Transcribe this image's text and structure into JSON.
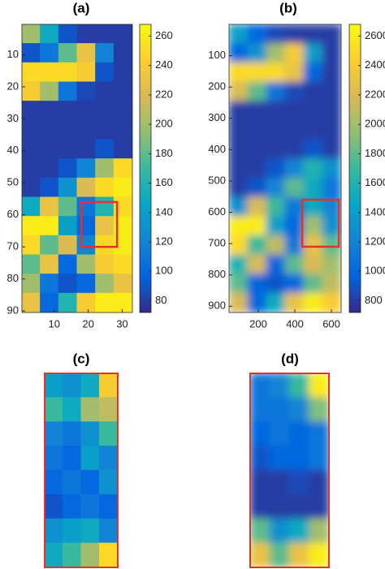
{
  "chart_data": [
    {
      "type": "heatmap",
      "title": "(a)",
      "colormap": "parula",
      "xlim": [
        0.5,
        33
      ],
      "ylim": [
        0.5,
        90.5
      ],
      "xticks": [
        10,
        20,
        30
      ],
      "yticks": [
        10,
        20,
        30,
        40,
        50,
        60,
        70,
        80,
        90
      ],
      "clim": [
        72,
        268
      ],
      "cticks": [
        80,
        100,
        120,
        140,
        160,
        180,
        200,
        220,
        240,
        260
      ],
      "highlight": {
        "x": [
          18,
          28.5
        ],
        "y": [
          56,
          70
        ],
        "color": "#e8302a"
      },
      "z": [
        [
          200,
          150,
          90,
          80,
          80,
          80
        ],
        [
          90,
          110,
          180,
          230,
          120,
          80
        ],
        [
          250,
          250,
          250,
          240,
          90,
          80
        ],
        [
          240,
          200,
          110,
          85,
          80,
          80
        ],
        [
          80,
          80,
          80,
          80,
          80,
          80
        ],
        [
          80,
          80,
          80,
          80,
          80,
          80
        ],
        [
          80,
          80,
          80,
          80,
          90,
          80
        ],
        [
          80,
          80,
          90,
          120,
          200,
          250
        ],
        [
          80,
          90,
          130,
          220,
          250,
          260
        ],
        [
          150,
          230,
          180,
          110,
          160,
          250
        ],
        [
          260,
          260,
          140,
          100,
          230,
          260
        ],
        [
          250,
          180,
          220,
          120,
          250,
          260
        ],
        [
          180,
          230,
          100,
          200,
          240,
          250
        ],
        [
          200,
          110,
          90,
          100,
          200,
          230
        ],
        [
          230,
          100,
          160,
          240,
          260,
          260
        ]
      ]
    },
    {
      "type": "heatmap",
      "title": "(b)",
      "colormap": "parula",
      "smooth": true,
      "xlim": [
        40,
        653
      ],
      "ylim": [
        0,
        920
      ],
      "xticks": [
        200,
        400,
        600
      ],
      "yticks": [
        100,
        200,
        300,
        400,
        500,
        600,
        700,
        800,
        900
      ],
      "clim": [
        720,
        2680
      ],
      "cticks": [
        800,
        1000,
        1200,
        1400,
        1600,
        1800,
        2000,
        2200,
        2400,
        2600
      ],
      "highlight": {
        "x": [
          440,
          640
        ],
        "y": [
          560,
          710
        ],
        "color": "#e8302a"
      },
      "z": [
        [
          1400,
          1000,
          850,
          800,
          800,
          800
        ],
        [
          1000,
          1300,
          2000,
          2400,
          1400,
          800
        ],
        [
          2500,
          2500,
          2500,
          2300,
          1000,
          800
        ],
        [
          2200,
          1800,
          1100,
          850,
          800,
          800
        ],
        [
          800,
          800,
          800,
          800,
          800,
          800
        ],
        [
          800,
          800,
          800,
          800,
          800,
          800
        ],
        [
          800,
          800,
          800,
          800,
          900,
          800
        ],
        [
          800,
          800,
          900,
          1200,
          1600,
          1300
        ],
        [
          800,
          900,
          1200,
          1800,
          1500,
          1100
        ],
        [
          1300,
          2200,
          1700,
          1100,
          1500,
          1200
        ],
        [
          2600,
          2600,
          1400,
          1000,
          2000,
          1300
        ],
        [
          2500,
          1700,
          2100,
          1100,
          2300,
          1800
        ],
        [
          1600,
          2200,
          1000,
          1800,
          2200,
          2000
        ],
        [
          1800,
          1000,
          900,
          1000,
          1800,
          2100
        ],
        [
          2200,
          1000,
          1500,
          2300,
          2600,
          2400
        ]
      ]
    },
    {
      "type": "heatmap",
      "title": "(c)",
      "colormap": "parula",
      "border": "#e8302a",
      "clim": [
        72,
        268
      ],
      "z": [
        [
          140,
          130,
          150,
          240
        ],
        [
          170,
          150,
          200,
          210
        ],
        [
          120,
          110,
          130,
          170
        ],
        [
          110,
          100,
          140,
          120
        ],
        [
          100,
          110,
          100,
          130
        ],
        [
          90,
          100,
          110,
          100
        ],
        [
          130,
          140,
          150,
          120
        ],
        [
          150,
          170,
          200,
          250
        ]
      ]
    },
    {
      "type": "heatmap",
      "title": "(d)",
      "colormap": "parula",
      "smooth": true,
      "border": "#e8302a",
      "clim": [
        72,
        268
      ],
      "z": [
        [
          110,
          120,
          170,
          260
        ],
        [
          110,
          110,
          120,
          190
        ],
        [
          100,
          110,
          100,
          110
        ],
        [
          90,
          100,
          100,
          110
        ],
        [
          80,
          80,
          85,
          80
        ],
        [
          80,
          80,
          80,
          80
        ],
        [
          180,
          130,
          150,
          200
        ],
        [
          230,
          180,
          230,
          260
        ]
      ]
    }
  ]
}
